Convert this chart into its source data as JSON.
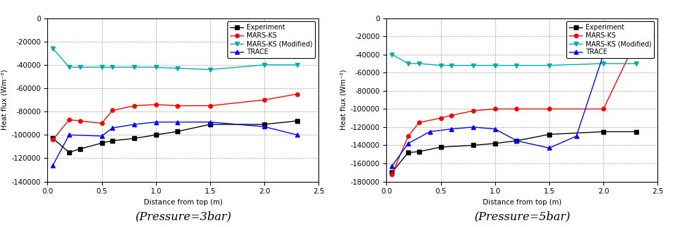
{
  "chart1": {
    "title": "(Pressure=3bar)",
    "xlabel": "Distance from top (m)",
    "ylabel": "Heat flux (Wm⁻²)",
    "xlim": [
      0,
      2.5
    ],
    "ylim": [
      -140000,
      0
    ],
    "yticks": [
      0,
      -20000,
      -40000,
      -60000,
      -80000,
      -100000,
      -120000,
      -140000
    ],
    "xticks": [
      0.0,
      0.5,
      1.0,
      1.5,
      2.0,
      2.5
    ],
    "series": {
      "Experiment": {
        "x": [
          0.05,
          0.2,
          0.3,
          0.5,
          0.6,
          0.8,
          1.0,
          1.2,
          1.5,
          2.0,
          2.3
        ],
        "y": [
          -103000,
          -115000,
          -112000,
          -107000,
          -105000,
          -103000,
          -100000,
          -97000,
          -91000,
          -91000,
          -88000
        ],
        "color": "#000000",
        "marker": "s",
        "linestyle": "-"
      },
      "MARS-KS": {
        "x": [
          0.05,
          0.2,
          0.3,
          0.5,
          0.6,
          0.8,
          1.0,
          1.2,
          1.5,
          2.0,
          2.3
        ],
        "y": [
          -104000,
          -87000,
          -88000,
          -90000,
          -79000,
          -75000,
          -74000,
          -75000,
          -75000,
          -70000,
          -65000
        ],
        "color": "#ff0000",
        "marker": "o",
        "linestyle": "-"
      },
      "MARS-KS (Modified)": {
        "x": [
          0.05,
          0.2,
          0.3,
          0.5,
          0.6,
          0.8,
          1.0,
          1.2,
          1.5,
          2.0,
          2.3
        ],
        "y": [
          -26000,
          -42000,
          -42000,
          -42000,
          -42000,
          -42000,
          -42000,
          -43000,
          -44000,
          -40000,
          -40000
        ],
        "color": "#00aaaa",
        "marker": "v",
        "linestyle": "-"
      },
      "TRACE": {
        "x": [
          0.05,
          0.2,
          0.5,
          0.6,
          0.8,
          1.0,
          1.2,
          1.5,
          2.0,
          2.3
        ],
        "y": [
          -126000,
          -100000,
          -101000,
          -94000,
          -91000,
          -89000,
          -89000,
          -89000,
          -93000,
          -100000
        ],
        "color": "#0000ff",
        "marker": "^",
        "linestyle": "-"
      }
    }
  },
  "chart2": {
    "title": "(Pressure=5bar)",
    "xlabel": "Distance from top (m)",
    "ylabel": "Heat flux (Wm⁻²)",
    "xlim": [
      0,
      2.5
    ],
    "ylim": [
      -180000,
      0
    ],
    "yticks": [
      0,
      -20000,
      -40000,
      -60000,
      -80000,
      -100000,
      -120000,
      -140000,
      -160000,
      -180000
    ],
    "xticks": [
      0.0,
      0.5,
      1.0,
      1.5,
      2.0,
      2.5
    ],
    "series": {
      "Experiment": {
        "x": [
          0.05,
          0.2,
          0.3,
          0.5,
          0.8,
          1.0,
          1.2,
          1.5,
          2.0,
          2.3
        ],
        "y": [
          -170000,
          -148000,
          -147000,
          -142000,
          -140000,
          -138000,
          -135000,
          -128000,
          -125000,
          -125000
        ],
        "color": "#000000",
        "marker": "s",
        "linestyle": "-"
      },
      "MARS-KS": {
        "x": [
          0.05,
          0.2,
          0.3,
          0.5,
          0.6,
          0.8,
          1.0,
          1.2,
          1.5,
          2.0,
          2.3
        ],
        "y": [
          -172000,
          -130000,
          -115000,
          -110000,
          -107000,
          -102000,
          -100000,
          -100000,
          -100000,
          -100000,
          -25000
        ],
        "color": "#ff0000",
        "marker": "o",
        "linestyle": "-"
      },
      "MARS-KS (Modified)": {
        "x": [
          0.05,
          0.2,
          0.3,
          0.5,
          0.6,
          0.8,
          1.0,
          1.2,
          1.5,
          2.0,
          2.3
        ],
        "y": [
          -40000,
          -50000,
          -50000,
          -52000,
          -52000,
          -52000,
          -52000,
          -52000,
          -52000,
          -50000,
          -50000
        ],
        "color": "#00aaaa",
        "marker": "v",
        "linestyle": "-"
      },
      "TRACE": {
        "x": [
          0.05,
          0.2,
          0.4,
          0.6,
          0.8,
          1.0,
          1.2,
          1.5,
          1.75,
          2.0,
          2.3
        ],
        "y": [
          -163000,
          -138000,
          -125000,
          -122000,
          -120000,
          -122000,
          -135000,
          -143000,
          -130000,
          -40000,
          -10000
        ],
        "color": "#0000ff",
        "marker": "^",
        "linestyle": "-"
      }
    }
  },
  "legend_order": [
    "Experiment",
    "MARS-KS",
    "MARS-KS (Modified)",
    "TRACE"
  ],
  "fontsize": 7.5,
  "title_fontsize": 12
}
